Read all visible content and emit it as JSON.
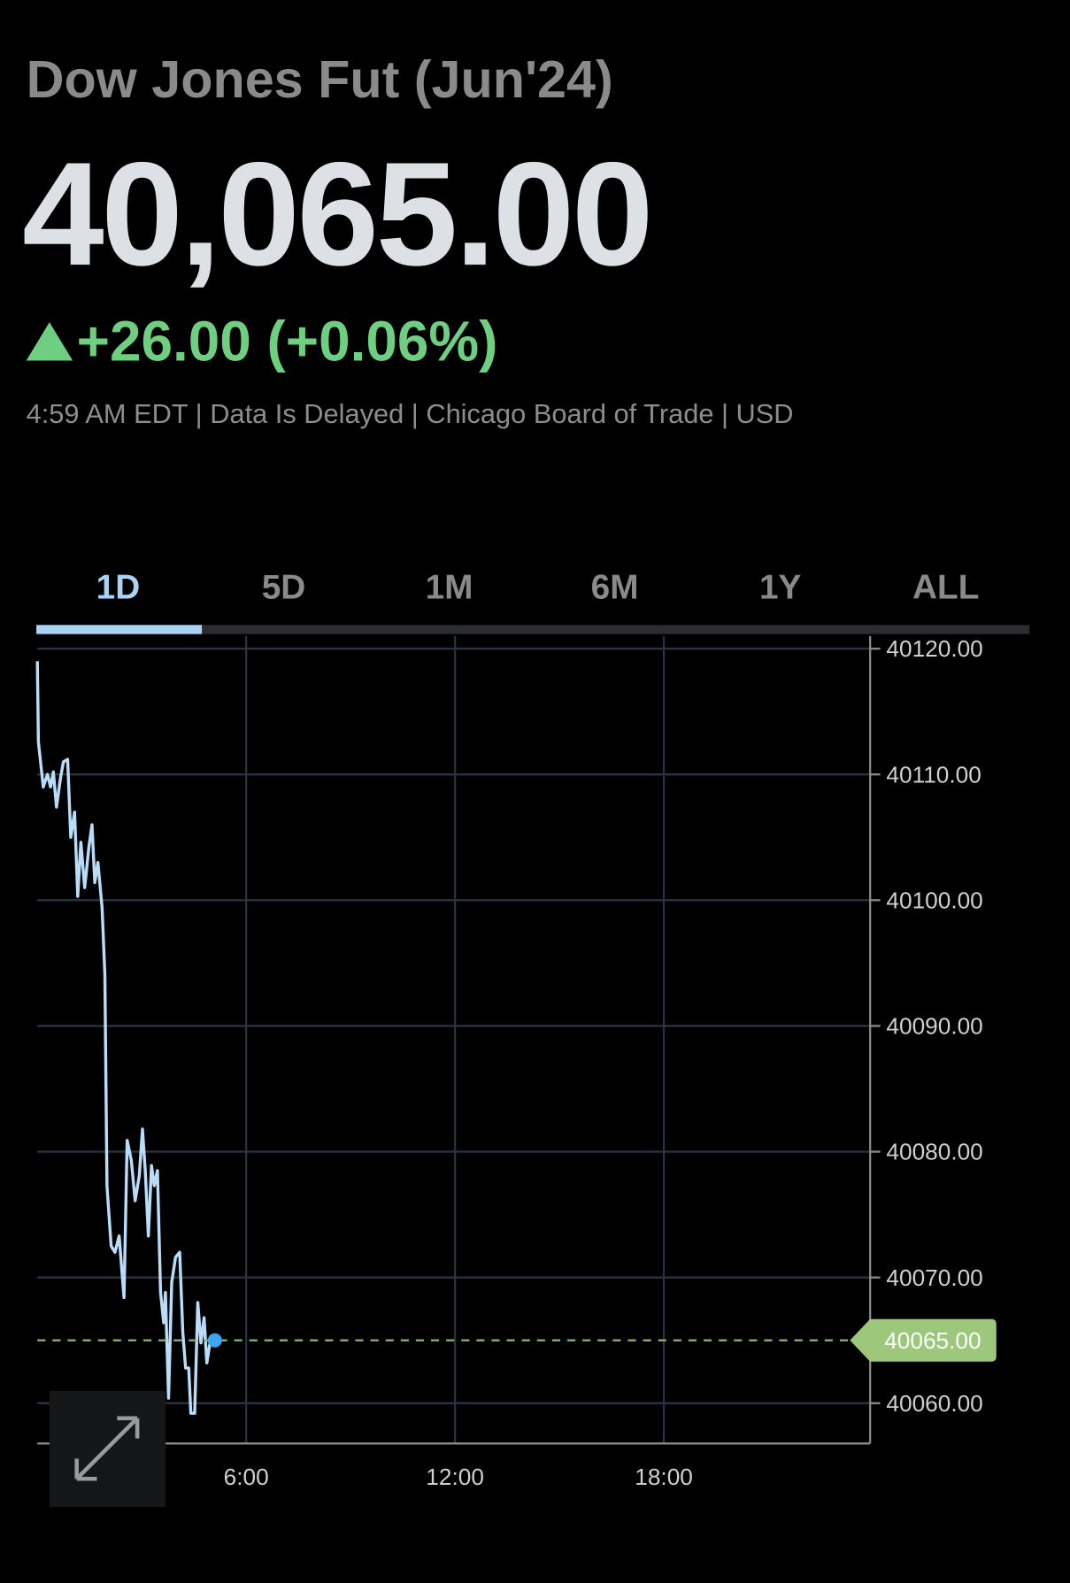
{
  "header": {
    "title": "Dow Jones Fut (Jun'24)",
    "price": "40,065.00",
    "change": "+26.00 (+0.06%)",
    "meta": "4:59 AM EDT | Data Is Delayed | Chicago Board of Trade | USD"
  },
  "tabs": [
    "1D",
    "5D",
    "1M",
    "6M",
    "1Y",
    "ALL"
  ],
  "chart_data": {
    "type": "line",
    "color": "#b9dcf8",
    "grid": true,
    "x": [
      0,
      0.03,
      0.17,
      0.29,
      0.38,
      0.46,
      0.55,
      0.67,
      0.75,
      0.87,
      0.96,
      1.07,
      1.16,
      1.25,
      1.36,
      1.48,
      1.57,
      1.65,
      1.74,
      1.86,
      1.94,
      2.0,
      2.12,
      2.23,
      2.35,
      2.49,
      2.58,
      2.7,
      2.81,
      2.93,
      3.02,
      3.1,
      3.19,
      3.28,
      3.36,
      3.45,
      3.54,
      3.63,
      3.68,
      3.77,
      3.86,
      3.97,
      4.09,
      4.18,
      4.26,
      4.35,
      4.41,
      4.52,
      4.61,
      4.7,
      4.79,
      4.87,
      4.96,
      5.1
    ],
    "values": [
      40119.0,
      40112.6,
      40109.0,
      40110.0,
      40109.0,
      40110.2,
      40107.4,
      40109.8,
      40111.0,
      40111.2,
      40105.0,
      40107.0,
      40100.3,
      40104.6,
      40101.0,
      40104.2,
      40106.0,
      40101.4,
      40103.0,
      40099.4,
      40094.1,
      40077.3,
      40072.5,
      40072.0,
      40073.3,
      40068.4,
      40080.9,
      40079.3,
      40076.1,
      40078.1,
      40081.8,
      40078.5,
      40073.3,
      40078.9,
      40077.3,
      40078.5,
      40068.8,
      40066.4,
      40068.8,
      40060.4,
      40069.6,
      40071.6,
      40072.0,
      40065.6,
      40062.8,
      40062.8,
      40059.2,
      40059.2,
      40068.0,
      40064.8,
      40066.8,
      40063.2,
      40064.8,
      40065.0
    ],
    "xlim": [
      0,
      24
    ],
    "xticks": [
      {
        "value": 6,
        "label": "6:00"
      },
      {
        "value": 12,
        "label": "12:00"
      },
      {
        "value": 18,
        "label": "18:00"
      }
    ],
    "ylim": [
      40056.8,
      40121
    ],
    "yticks": [
      {
        "value": 40060,
        "label": "40060.00"
      },
      {
        "value": 40070,
        "label": "40070.00"
      },
      {
        "value": 40080,
        "label": "40080.00"
      },
      {
        "value": 40090,
        "label": "40090.00"
      },
      {
        "value": 40100,
        "label": "40100.00"
      },
      {
        "value": 40110,
        "label": "40110.00"
      },
      {
        "value": 40120,
        "label": "40120.00"
      }
    ],
    "last_price": {
      "value": 40065,
      "label": "40065.00"
    }
  }
}
